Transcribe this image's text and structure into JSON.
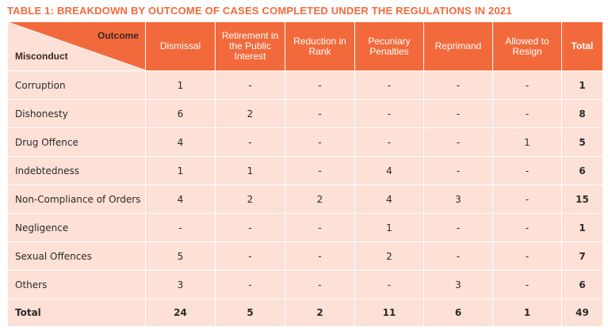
{
  "title": "TABLE 1: BREAKDOWN BY OUTCOME OF CASES COMPLETED UNDER THE REGULATIONS IN 2021",
  "colors": {
    "accent": "#f26a3b",
    "row_bg": "#fde0d6"
  },
  "header": {
    "corner_top": "Outcome",
    "corner_bottom": "Misconduct",
    "columns": [
      {
        "label": "Dismissal"
      },
      {
        "label": "Retirement in the Public Interest"
      },
      {
        "label": "Reduction in Rank"
      },
      {
        "label": "Pecuniary Penalties"
      },
      {
        "label": "Reprimand"
      },
      {
        "label": "Allowed to Resign"
      },
      {
        "label": "Total"
      }
    ]
  },
  "rows": [
    {
      "label": "Corruption",
      "cells": [
        "1",
        "-",
        "-",
        "-",
        "-",
        "-",
        "1"
      ]
    },
    {
      "label": "Dishonesty",
      "cells": [
        "6",
        "2",
        "-",
        "-",
        "-",
        "-",
        "8"
      ]
    },
    {
      "label": "Drug Offence",
      "cells": [
        "4",
        "-",
        "-",
        "-",
        "-",
        "1",
        "5"
      ]
    },
    {
      "label": "Indebtedness",
      "cells": [
        "1",
        "1",
        "-",
        "4",
        "-",
        "-",
        "6"
      ]
    },
    {
      "label": "Non-Compliance of Orders",
      "cells": [
        "4",
        "2",
        "2",
        "4",
        "3",
        "-",
        "15"
      ]
    },
    {
      "label": "Negligence",
      "cells": [
        "-",
        "-",
        "-",
        "1",
        "-",
        "-",
        "1"
      ]
    },
    {
      "label": "Sexual Offences",
      "cells": [
        "5",
        "-",
        "-",
        "2",
        "-",
        "-",
        "7"
      ]
    },
    {
      "label": "Others",
      "cells": [
        "3",
        "-",
        "-",
        "-",
        "3",
        "-",
        "6"
      ]
    }
  ],
  "totals": {
    "label": "Total",
    "cells": [
      "24",
      "5",
      "2",
      "11",
      "6",
      "1",
      "49"
    ]
  }
}
